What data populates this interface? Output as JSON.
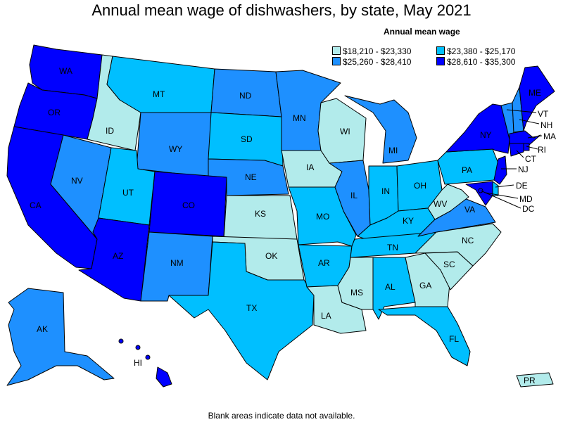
{
  "title": "Annual mean wage of dishwashers, by state, May 2021",
  "footnote": "Blank areas indicate data not available.",
  "legend": {
    "title": "Annual mean wage",
    "bins": [
      {
        "label": "$18,210 - $23,330",
        "color": "#b2ebeb"
      },
      {
        "label": "$23,380 - $25,170",
        "color": "#00bfff"
      },
      {
        "label": "$25,260 - $28,410",
        "color": "#1e90ff"
      },
      {
        "label": "$28,610 - $35,300",
        "color": "#0000ff"
      }
    ]
  },
  "states": [
    {
      "abbr": "WA",
      "bin": 3
    },
    {
      "abbr": "OR",
      "bin": 3
    },
    {
      "abbr": "CA",
      "bin": 3
    },
    {
      "abbr": "ID",
      "bin": 0
    },
    {
      "abbr": "NV",
      "bin": 2
    },
    {
      "abbr": "MT",
      "bin": 1
    },
    {
      "abbr": "WY",
      "bin": 2
    },
    {
      "abbr": "UT",
      "bin": 1
    },
    {
      "abbr": "AZ",
      "bin": 3
    },
    {
      "abbr": "CO",
      "bin": 3
    },
    {
      "abbr": "NM",
      "bin": 2
    },
    {
      "abbr": "ND",
      "bin": 2
    },
    {
      "abbr": "SD",
      "bin": 1
    },
    {
      "abbr": "NE",
      "bin": 2
    },
    {
      "abbr": "KS",
      "bin": 0
    },
    {
      "abbr": "OK",
      "bin": 0
    },
    {
      "abbr": "TX",
      "bin": 1
    },
    {
      "abbr": "MN",
      "bin": 2
    },
    {
      "abbr": "IA",
      "bin": 0
    },
    {
      "abbr": "MO",
      "bin": 1
    },
    {
      "abbr": "AR",
      "bin": 1
    },
    {
      "abbr": "LA",
      "bin": 0
    },
    {
      "abbr": "WI",
      "bin": 0
    },
    {
      "abbr": "IL",
      "bin": 2
    },
    {
      "abbr": "MI",
      "bin": 2
    },
    {
      "abbr": "IN",
      "bin": 1
    },
    {
      "abbr": "OH",
      "bin": 1
    },
    {
      "abbr": "KY",
      "bin": 1
    },
    {
      "abbr": "TN",
      "bin": 1
    },
    {
      "abbr": "MS",
      "bin": 0
    },
    {
      "abbr": "AL",
      "bin": 1
    },
    {
      "abbr": "GA",
      "bin": 0
    },
    {
      "abbr": "FL",
      "bin": 1
    },
    {
      "abbr": "SC",
      "bin": 0
    },
    {
      "abbr": "NC",
      "bin": 0
    },
    {
      "abbr": "VA",
      "bin": 2
    },
    {
      "abbr": "WV",
      "bin": 0
    },
    {
      "abbr": "PA",
      "bin": 1
    },
    {
      "abbr": "NY",
      "bin": 3
    },
    {
      "abbr": "VT",
      "bin": 2
    },
    {
      "abbr": "NH",
      "bin": 2
    },
    {
      "abbr": "ME",
      "bin": 3
    },
    {
      "abbr": "MA",
      "bin": 3
    },
    {
      "abbr": "RI",
      "bin": 3
    },
    {
      "abbr": "CT",
      "bin": 3
    },
    {
      "abbr": "NJ",
      "bin": 3
    },
    {
      "abbr": "DE",
      "bin": 1
    },
    {
      "abbr": "MD",
      "bin": 3
    },
    {
      "abbr": "DC",
      "bin": 3
    },
    {
      "abbr": "AK",
      "bin": 2
    },
    {
      "abbr": "HI",
      "bin": 3
    },
    {
      "abbr": "PR",
      "bin": 0
    }
  ]
}
